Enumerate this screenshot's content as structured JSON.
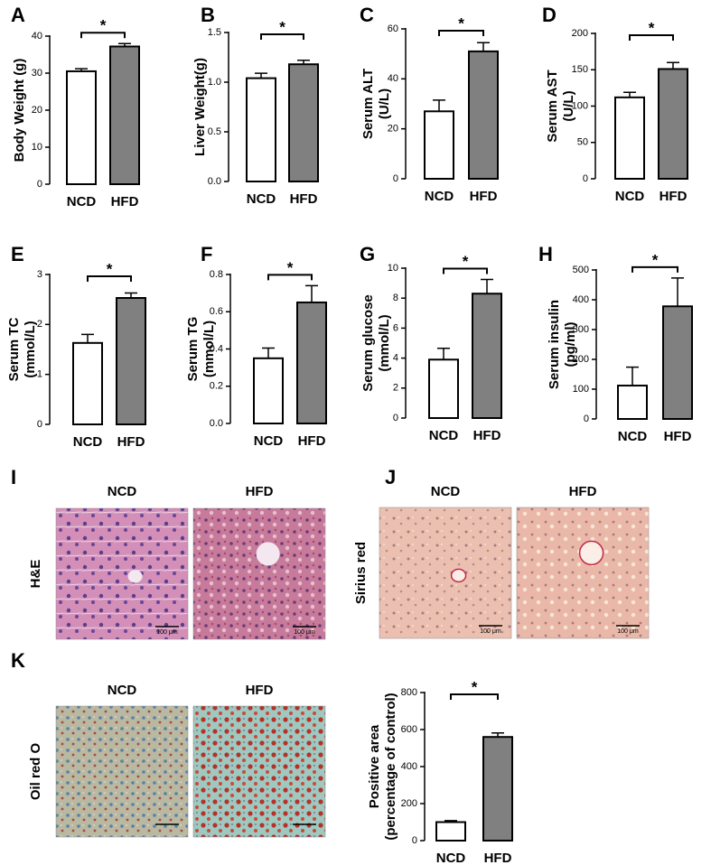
{
  "chart_data": [
    {
      "type": "bar",
      "panel": "A",
      "ylabel": "Body Weight (g)",
      "categories": [
        "NCD",
        "HFD"
      ],
      "values": [
        30.5,
        37.2
      ],
      "errors": [
        0.7,
        0.8
      ],
      "colors": [
        "#ffffff",
        "#808080"
      ],
      "ylim": [
        0,
        40
      ],
      "yticks": [
        0,
        10,
        20,
        30,
        40
      ],
      "annotation": "*"
    },
    {
      "type": "bar",
      "panel": "B",
      "ylabel": "Liver Weight(g)",
      "categories": [
        "NCD",
        "HFD"
      ],
      "values": [
        1.04,
        1.18
      ],
      "errors": [
        0.05,
        0.04
      ],
      "colors": [
        "#ffffff",
        "#808080"
      ],
      "ylim": [
        0,
        1.5
      ],
      "yticks": [
        {
          "value": 0,
          "label": "0.0"
        },
        0.5,
        {
          "value": 1,
          "label": "1.0"
        },
        1.5
      ],
      "annotation": "*"
    },
    {
      "type": "bar",
      "panel": "C",
      "ylabel": [
        "Serum ALT",
        "(U/L)"
      ],
      "categories": [
        "NCD",
        "HFD"
      ],
      "values": [
        27,
        51
      ],
      "errors": [
        4.5,
        3.5
      ],
      "colors": [
        "#ffffff",
        "#808080"
      ],
      "ylim": [
        0,
        60
      ],
      "yticks": [
        0,
        20,
        40,
        60
      ],
      "annotation": "*"
    },
    {
      "type": "bar",
      "panel": "D",
      "ylabel": [
        "Serum AST",
        "(U/L)"
      ],
      "categories": [
        "NCD",
        "HFD"
      ],
      "values": [
        112,
        151
      ],
      "errors": [
        7,
        9
      ],
      "colors": [
        "#ffffff",
        "#808080"
      ],
      "ylim": [
        0,
        200
      ],
      "yticks": [
        0,
        50,
        100,
        150,
        200
      ],
      "annotation": "*"
    },
    {
      "type": "bar",
      "panel": "E",
      "ylabel": [
        "Serum TC",
        "(mmol/L)"
      ],
      "categories": [
        "NCD",
        "HFD"
      ],
      "values": [
        1.63,
        2.53
      ],
      "errors": [
        0.17,
        0.1
      ],
      "colors": [
        "#ffffff",
        "#808080"
      ],
      "ylim": [
        0,
        3
      ],
      "yticks": [
        0,
        1,
        2,
        3
      ],
      "annotation": "*"
    },
    {
      "type": "bar",
      "panel": "F",
      "ylabel": [
        "Serum TG",
        "(mmol/L)"
      ],
      "categories": [
        "NCD",
        "HFD"
      ],
      "values": [
        0.35,
        0.65
      ],
      "errors": [
        0.055,
        0.09
      ],
      "colors": [
        "#ffffff",
        "#808080"
      ],
      "ylim": [
        0,
        0.8
      ],
      "yticks": [
        {
          "value": 0,
          "label": "0.0"
        },
        0.2,
        0.4,
        0.6,
        0.8
      ],
      "annotation": "*"
    },
    {
      "type": "bar",
      "panel": "G",
      "ylabel": [
        "Serum glucose",
        "(mmol/L)"
      ],
      "categories": [
        "NCD",
        "HFD"
      ],
      "values": [
        3.9,
        8.3
      ],
      "errors": [
        0.75,
        0.95
      ],
      "colors": [
        "#ffffff",
        "#808080"
      ],
      "ylim": [
        0,
        10
      ],
      "yticks": [
        0,
        2,
        4,
        6,
        8,
        10
      ],
      "annotation": "*"
    },
    {
      "type": "bar",
      "panel": "H",
      "ylabel": [
        "Serum insulin",
        "(pg/ml)"
      ],
      "categories": [
        "NCD",
        "HFD"
      ],
      "values": [
        112,
        378
      ],
      "errors": [
        62,
        95
      ],
      "colors": [
        "#ffffff",
        "#808080"
      ],
      "ylim": [
        0,
        500
      ],
      "yticks": [
        0,
        100,
        200,
        300,
        400,
        500
      ],
      "annotation": "*"
    },
    {
      "type": "bar",
      "ylabel": [
        "Positive area",
        "(percentage of control)"
      ],
      "categories": [
        "NCD",
        "HFD"
      ],
      "values": [
        100,
        560
      ],
      "errors": [
        8,
        22
      ],
      "colors": [
        "#ffffff",
        "#808080"
      ],
      "ylim": [
        0,
        800
      ],
      "yticks": [
        0,
        200,
        400,
        600,
        800
      ],
      "annotation": "*"
    }
  ],
  "histology": [
    {
      "panel": "I",
      "columns": [
        "NCD",
        "HFD"
      ],
      "row_label": "H&E",
      "scale_bar": "100 μm"
    },
    {
      "panel": "J",
      "columns": [
        "NCD",
        "HFD"
      ],
      "row_label": "Sirius red",
      "scale_bar": "100 μm"
    },
    {
      "panel": "K",
      "columns": [
        "NCD",
        "HFD"
      ],
      "row_label": "Oil red O"
    }
  ]
}
